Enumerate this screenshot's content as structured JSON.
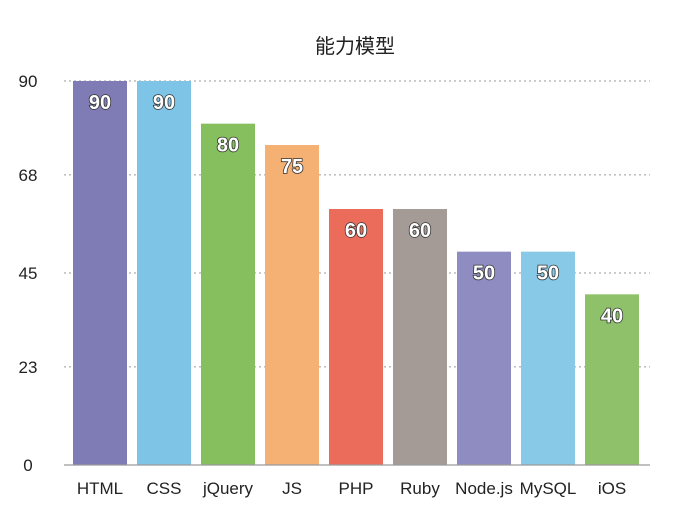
{
  "chart_data": {
    "type": "bar",
    "title": "能力模型",
    "xlabel": "",
    "ylabel": "",
    "categories": [
      "HTML",
      "CSS",
      "jQuery",
      "JS",
      "PHP",
      "Ruby",
      "Node.js",
      "MySQL",
      "iOS"
    ],
    "values": [
      90,
      90,
      80,
      75,
      60,
      60,
      50,
      50,
      40
    ],
    "data_labels": [
      "90",
      "90",
      "80",
      "75",
      "60",
      "60",
      "50",
      "50",
      "40"
    ],
    "colors": [
      "#7f7bb5",
      "#7ec4e6",
      "#86bf5e",
      "#f5b073",
      "#ec6c5b",
      "#a59b96",
      "#8e8cc0",
      "#87c9e6",
      "#8fc16b"
    ],
    "y_ticks": [
      0,
      23,
      45,
      68,
      90
    ],
    "y_tick_labels": [
      "0",
      "23",
      "45",
      "68",
      "90"
    ],
    "ylim": [
      0,
      90
    ],
    "grid": true,
    "grid_style": "dotted"
  }
}
